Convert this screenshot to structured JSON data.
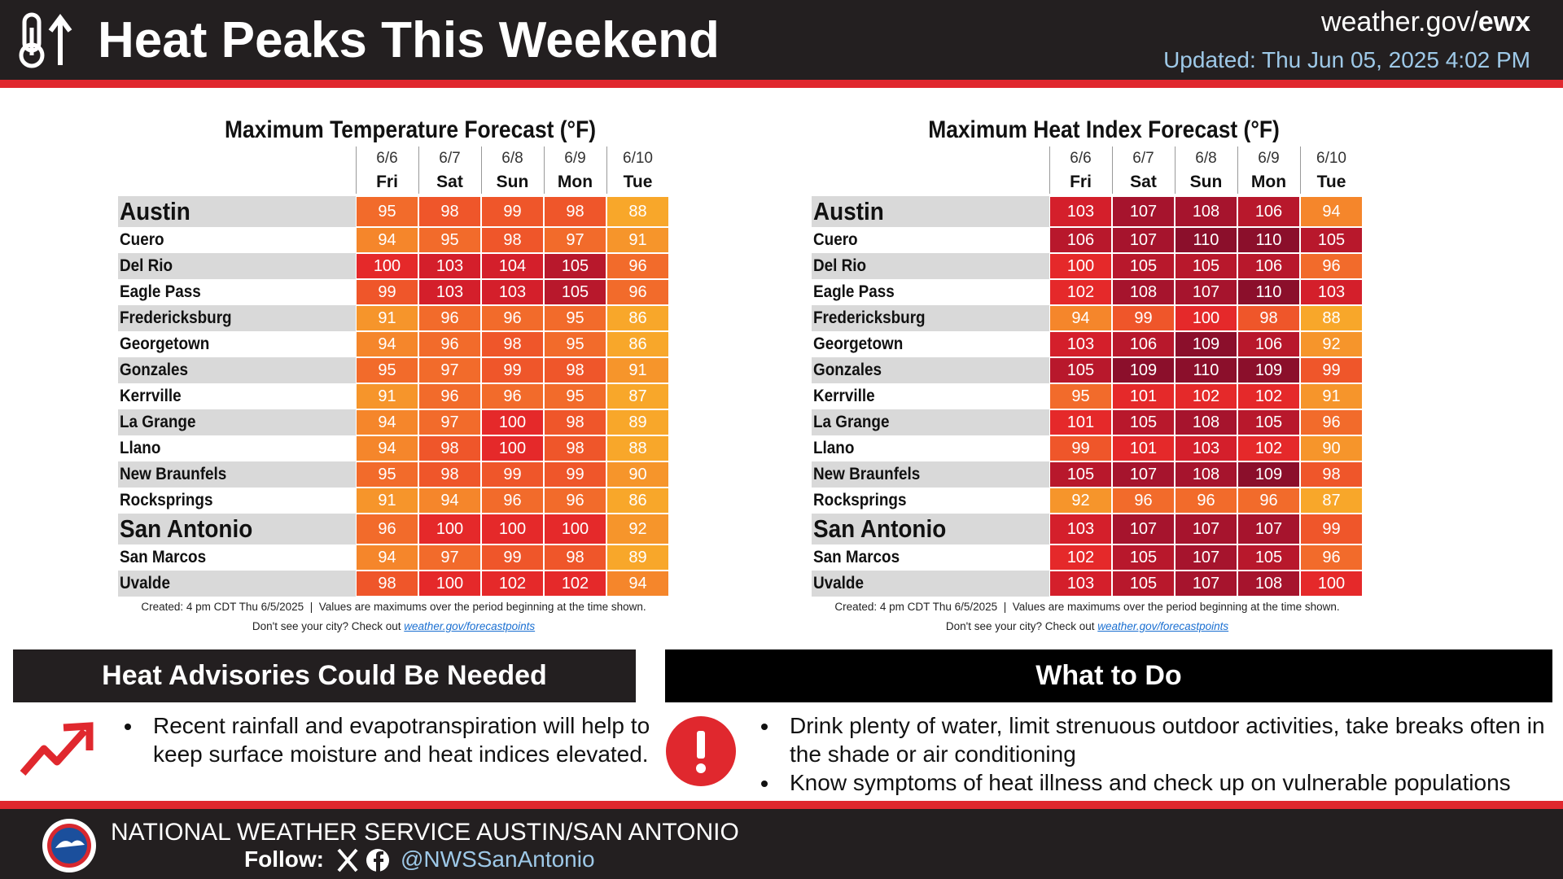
{
  "header": {
    "title": "Heat Peaks This Weekend",
    "site": [
      "weather.gov/",
      "ewx"
    ],
    "updated": "Updated: Thu Jun 05, 2025 4:02 PM"
  },
  "tables": [
    {
      "title": "Maximum Temperature Forecast (°F)",
      "dates": [
        "6/6",
        "6/7",
        "6/8",
        "6/9",
        "6/10"
      ],
      "days": [
        "Fri",
        "Sat",
        "Sun",
        "Mon",
        "Tue"
      ],
      "rows": [
        {
          "city": "Austin",
          "values": [
            95,
            98,
            99,
            98,
            88
          ]
        },
        {
          "city": "Cuero",
          "values": [
            94,
            95,
            98,
            97,
            91
          ]
        },
        {
          "city": "Del Rio",
          "values": [
            100,
            103,
            104,
            105,
            96
          ]
        },
        {
          "city": "Eagle Pass",
          "values": [
            99,
            103,
            103,
            105,
            96
          ]
        },
        {
          "city": "Fredericksburg",
          "values": [
            91,
            96,
            96,
            95,
            86
          ]
        },
        {
          "city": "Georgetown",
          "values": [
            94,
            96,
            98,
            95,
            86
          ]
        },
        {
          "city": "Gonzales",
          "values": [
            95,
            97,
            99,
            98,
            91
          ]
        },
        {
          "city": "Kerrville",
          "values": [
            91,
            96,
            96,
            95,
            87
          ]
        },
        {
          "city": "La Grange",
          "values": [
            94,
            97,
            100,
            98,
            89
          ]
        },
        {
          "city": "Llano",
          "values": [
            94,
            98,
            100,
            98,
            88
          ]
        },
        {
          "city": "New Braunfels",
          "values": [
            95,
            98,
            99,
            99,
            90
          ]
        },
        {
          "city": "Rocksprings",
          "values": [
            91,
            94,
            96,
            96,
            86
          ]
        },
        {
          "city": "San Antonio",
          "values": [
            96,
            100,
            100,
            100,
            92
          ]
        },
        {
          "city": "San Marcos",
          "values": [
            94,
            97,
            99,
            98,
            89
          ]
        },
        {
          "city": "Uvalde",
          "values": [
            98,
            100,
            102,
            102,
            94
          ]
        }
      ],
      "note": "Created: 4 pm CDT Thu 6/5/2025  |  Values are maximums over the period beginning at the time shown.",
      "check": "Don't see your city? Check out ",
      "link": "weather.gov/forecastpoints"
    },
    {
      "title": "Maximum Heat Index Forecast (°F)",
      "dates": [
        "6/6",
        "6/7",
        "6/8",
        "6/9",
        "6/10"
      ],
      "days": [
        "Fri",
        "Sat",
        "Sun",
        "Mon",
        "Tue"
      ],
      "rows": [
        {
          "city": "Austin",
          "values": [
            103,
            107,
            108,
            106,
            94
          ]
        },
        {
          "city": "Cuero",
          "values": [
            106,
            107,
            110,
            110,
            105
          ]
        },
        {
          "city": "Del Rio",
          "values": [
            100,
            105,
            105,
            106,
            96
          ]
        },
        {
          "city": "Eagle Pass",
          "values": [
            102,
            108,
            107,
            110,
            103
          ]
        },
        {
          "city": "Fredericksburg",
          "values": [
            94,
            99,
            100,
            98,
            88
          ]
        },
        {
          "city": "Georgetown",
          "values": [
            103,
            106,
            109,
            106,
            92
          ]
        },
        {
          "city": "Gonzales",
          "values": [
            105,
            109,
            110,
            109,
            99
          ]
        },
        {
          "city": "Kerrville",
          "values": [
            95,
            101,
            102,
            102,
            91
          ]
        },
        {
          "city": "La Grange",
          "values": [
            101,
            105,
            108,
            105,
            96
          ]
        },
        {
          "city": "Llano",
          "values": [
            99,
            101,
            103,
            102,
            90
          ]
        },
        {
          "city": "New Braunfels",
          "values": [
            105,
            107,
            108,
            109,
            98
          ]
        },
        {
          "city": "Rocksprings",
          "values": [
            92,
            96,
            96,
            96,
            87
          ]
        },
        {
          "city": "San Antonio",
          "values": [
            103,
            107,
            107,
            107,
            99
          ]
        },
        {
          "city": "San Marcos",
          "values": [
            102,
            105,
            107,
            105,
            96
          ]
        },
        {
          "city": "Uvalde",
          "values": [
            103,
            105,
            107,
            108,
            100
          ]
        }
      ],
      "note": "Created: 4 pm CDT Thu 6/5/2025  |  Values are maximums over the period beginning at the time shown.",
      "check": "Don't see your city? Check out ",
      "link": "weather.gov/forecastpoints"
    }
  ],
  "advisory": {
    "title": "Heat Advisories Could Be Needed",
    "bullets": [
      "Recent rainfall and evapotranspiration will help to keep surface moisture and heat indices elevated."
    ]
  },
  "todo": {
    "title": "What to Do",
    "bullets": [
      "Drink plenty of water, limit strenuous outdoor activities, take breaks often in the shade or air conditioning",
      "Know symptoms of heat illness and check up on vulnerable populations"
    ]
  },
  "footer": {
    "office": "NATIONAL WEATHER SERVICE AUSTIN/SAN ANTONIO",
    "follow": "Follow:",
    "handle": "@NWSSanAntonio"
  }
}
